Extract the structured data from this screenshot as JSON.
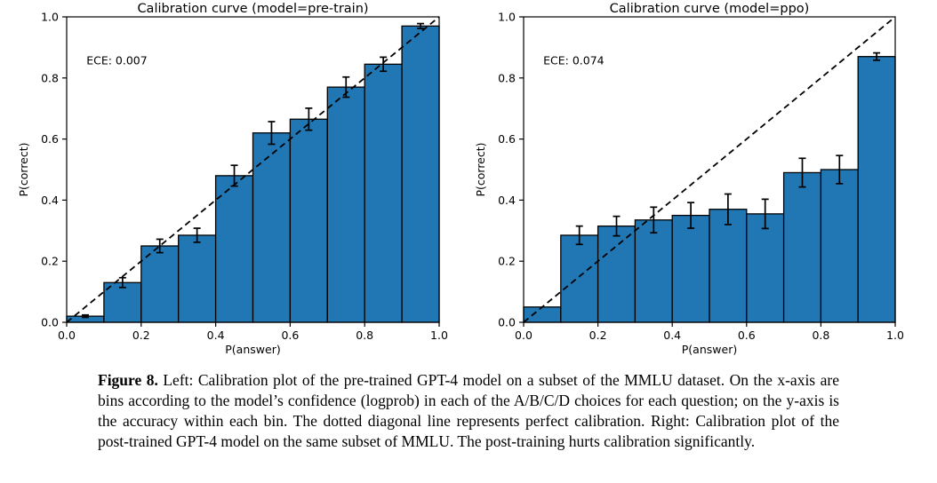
{
  "caption": {
    "label": "Figure 8.",
    "text": " Left: Calibration plot of the pre-trained GPT-4 model on a subset of the MMLU dataset. On the x-axis are bins according to the model’s confidence (logprob) in each of the A/B/C/D choices for each question; on the y-axis is the accuracy within each bin. The dotted diagonal line represents perfect calibration. Right: Calibration plot of the post-trained GPT-4 model on the same subset of MMLU. The post-training hurts calibration significantly."
  },
  "colors": {
    "bar_fill": "#2177b4",
    "bar_edge": "#000000",
    "axis": "#000000",
    "text": "#000000",
    "diagonal": "#000000"
  },
  "chart_data": [
    {
      "type": "bar",
      "title": "Calibration curve (model=pre-train)",
      "annotation": "ECE: 0.007",
      "xlabel": "P(answer)",
      "ylabel": "P(correct)",
      "xlim": [
        0.0,
        1.0
      ],
      "ylim": [
        0.0,
        1.0
      ],
      "xticks": [
        0.0,
        0.2,
        0.4,
        0.6,
        0.8,
        1.0
      ],
      "yticks": [
        0.0,
        0.2,
        0.4,
        0.6,
        0.8,
        1.0
      ],
      "grid": false,
      "legend": null,
      "diagonal_line": "dashed, from (0,0) to (1,1), perfect calibration reference",
      "bin_edges": [
        0.0,
        0.1,
        0.2,
        0.3,
        0.4,
        0.5,
        0.6,
        0.7,
        0.8,
        0.9,
        1.0
      ],
      "values": [
        0.02,
        0.13,
        0.25,
        0.285,
        0.48,
        0.62,
        0.665,
        0.77,
        0.845,
        0.97
      ],
      "errors": [
        0.004,
        0.016,
        0.022,
        0.023,
        0.034,
        0.037,
        0.036,
        0.033,
        0.023,
        0.008
      ]
    },
    {
      "type": "bar",
      "title": "Calibration curve (model=ppo)",
      "annotation": "ECE: 0.074",
      "xlabel": "P(answer)",
      "ylabel": "P(correct)",
      "xlim": [
        0.0,
        1.0
      ],
      "ylim": [
        0.0,
        1.0
      ],
      "xticks": [
        0.0,
        0.2,
        0.4,
        0.6,
        0.8,
        1.0
      ],
      "yticks": [
        0.0,
        0.2,
        0.4,
        0.6,
        0.8,
        1.0
      ],
      "grid": false,
      "legend": null,
      "diagonal_line": "dashed, from (0,0) to (1,1), perfect calibration reference",
      "bin_edges": [
        0.0,
        0.1,
        0.2,
        0.3,
        0.4,
        0.5,
        0.6,
        0.7,
        0.8,
        0.9,
        1.0
      ],
      "values": [
        0.05,
        0.285,
        0.315,
        0.335,
        0.35,
        0.37,
        0.355,
        0.49,
        0.5,
        0.87
      ],
      "errors": [
        0,
        0.03,
        0.032,
        0.042,
        0.042,
        0.05,
        0.048,
        0.047,
        0.046,
        0.012
      ]
    }
  ]
}
